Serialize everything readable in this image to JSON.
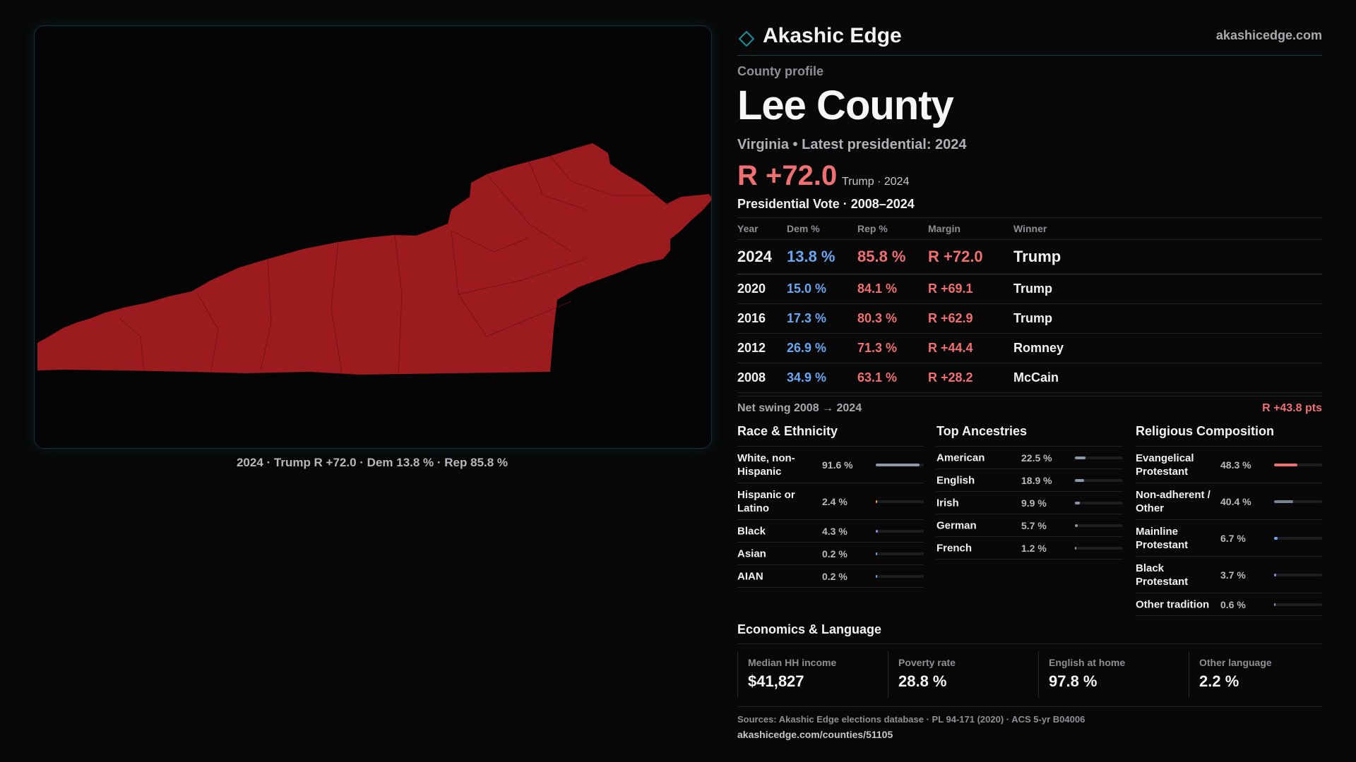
{
  "brand": {
    "name": "Akashic Edge",
    "url": "akashicedge.com"
  },
  "profile": {
    "label": "County profile",
    "county": "Lee County",
    "subtitle": "Virginia • Latest presidential: 2024",
    "headline_margin": "R +72.0",
    "headline_note": "Trump · 2024"
  },
  "map": {
    "caption": "2024 · Trump R +72.0 · Dem 13.8 % · Rep 85.8 %",
    "fill_color": "#9b1b1e"
  },
  "votes": {
    "title": "Presidential Vote · 2008–2024",
    "headers": {
      "year": "Year",
      "dem": "Dem %",
      "rep": "Rep %",
      "margin": "Margin",
      "winner": "Winner"
    },
    "rows": [
      {
        "year": "2024",
        "dem": "13.8 %",
        "rep": "85.8 %",
        "margin": "R +72.0",
        "winner": "Trump"
      },
      {
        "year": "2020",
        "dem": "15.0 %",
        "rep": "84.1 %",
        "margin": "R +69.1",
        "winner": "Trump"
      },
      {
        "year": "2016",
        "dem": "17.3 %",
        "rep": "80.3 %",
        "margin": "R +62.9",
        "winner": "Trump"
      },
      {
        "year": "2012",
        "dem": "26.9 %",
        "rep": "71.3 %",
        "margin": "R +44.4",
        "winner": "Romney"
      },
      {
        "year": "2008",
        "dem": "34.9 %",
        "rep": "63.1 %",
        "margin": "R +28.2",
        "winner": "McCain"
      }
    ],
    "swing_label": "Net swing 2008 → 2024",
    "swing_value": "R +43.8 pts"
  },
  "race": {
    "title": "Race & Ethnicity",
    "items": [
      {
        "label": "White, non-Hispanic",
        "value": "91.6 %",
        "pct": 91.6,
        "color": "#8d97ab"
      },
      {
        "label": "Hispanic or Latino",
        "value": "2.4 %",
        "pct": 2.4,
        "color": "#e3a53a"
      },
      {
        "label": "Black",
        "value": "4.3 %",
        "pct": 4.3,
        "color": "#8a86e6"
      },
      {
        "label": "Asian",
        "value": "0.2 %",
        "pct": 0.2,
        "color": "#6aa7f0"
      },
      {
        "label": "AIAN",
        "value": "0.2 %",
        "pct": 0.2,
        "color": "#6aa7f0"
      }
    ]
  },
  "ancestry": {
    "title": "Top Ancestries",
    "items": [
      {
        "label": "American",
        "value": "22.5 %",
        "pct": 22.5,
        "color": "#8d97ab"
      },
      {
        "label": "English",
        "value": "18.9 %",
        "pct": 18.9,
        "color": "#8d97ab"
      },
      {
        "label": "Irish",
        "value": "9.9 %",
        "pct": 9.9,
        "color": "#8d97ab"
      },
      {
        "label": "German",
        "value": "5.7 %",
        "pct": 5.7,
        "color": "#8d97ab"
      },
      {
        "label": "French",
        "value": "1.2 %",
        "pct": 1.2,
        "color": "#8d97ab"
      }
    ]
  },
  "religion": {
    "title": "Religious Composition",
    "items": [
      {
        "label": "Evangelical Protestant",
        "value": "48.3 %",
        "pct": 48.3,
        "color": "#f07072"
      },
      {
        "label": "Non-adherent / Other",
        "value": "40.4 %",
        "pct": 40.4,
        "color": "#7a8294"
      },
      {
        "label": "Mainline Protestant",
        "value": "6.7 %",
        "pct": 6.7,
        "color": "#6aa7f0"
      },
      {
        "label": "Black Protestant",
        "value": "3.7 %",
        "pct": 3.7,
        "color": "#8a86e6"
      },
      {
        "label": "Other tradition",
        "value": "0.6 %",
        "pct": 0.6,
        "color": "#8d97ab"
      }
    ]
  },
  "economics": {
    "title": "Economics & Language",
    "cards": [
      {
        "label": "Median HH income",
        "value": "$41,827"
      },
      {
        "label": "Poverty rate",
        "value": "28.8 %"
      },
      {
        "label": "English at home",
        "value": "97.8 %"
      },
      {
        "label": "Other language",
        "value": "2.2 %"
      }
    ],
    "sources": "Sources: Akashic Edge elections database · PL 94-171 (2020) · ACS 5-yr B04006",
    "source_url": "akashicedge.com/counties/51105"
  }
}
